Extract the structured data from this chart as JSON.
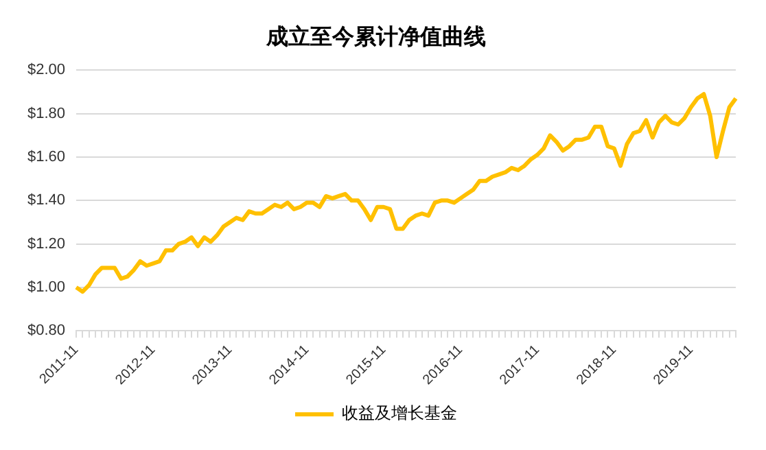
{
  "chart_data": {
    "type": "line",
    "title": "成立至今累计净值曲线",
    "categories": [
      "2011-11",
      null,
      null,
      null,
      null,
      null,
      null,
      null,
      null,
      null,
      null,
      null,
      "2012-11",
      null,
      null,
      null,
      null,
      null,
      null,
      null,
      null,
      null,
      null,
      null,
      "2013-11",
      null,
      null,
      null,
      null,
      null,
      null,
      null,
      null,
      null,
      null,
      null,
      "2014-11",
      null,
      null,
      null,
      null,
      null,
      null,
      null,
      null,
      null,
      null,
      null,
      "2015-11",
      null,
      null,
      null,
      null,
      null,
      null,
      null,
      null,
      null,
      null,
      null,
      "2016-11",
      null,
      null,
      null,
      null,
      null,
      null,
      null,
      null,
      null,
      null,
      null,
      "2017-11",
      null,
      null,
      null,
      null,
      null,
      null,
      null,
      null,
      null,
      null,
      null,
      "2018-11",
      null,
      null,
      null,
      null,
      null,
      null,
      null,
      null,
      null,
      null,
      null,
      "2019-11",
      null,
      null,
      null,
      null,
      null,
      null,
      null
    ],
    "series": [
      {
        "name": "收益及增长基金",
        "color": "#ffc000",
        "values": [
          1.0,
          0.98,
          1.01,
          1.06,
          1.09,
          1.09,
          1.09,
          1.04,
          1.05,
          1.08,
          1.12,
          1.1,
          1.11,
          1.12,
          1.17,
          1.17,
          1.2,
          1.21,
          1.23,
          1.19,
          1.23,
          1.21,
          1.24,
          1.28,
          1.3,
          1.32,
          1.31,
          1.35,
          1.34,
          1.34,
          1.36,
          1.38,
          1.37,
          1.39,
          1.36,
          1.37,
          1.39,
          1.39,
          1.37,
          1.42,
          1.41,
          1.42,
          1.43,
          1.4,
          1.4,
          1.36,
          1.31,
          1.37,
          1.37,
          1.36,
          1.27,
          1.27,
          1.31,
          1.33,
          1.34,
          1.33,
          1.39,
          1.4,
          1.4,
          1.39,
          1.41,
          1.43,
          1.45,
          1.49,
          1.49,
          1.51,
          1.52,
          1.53,
          1.55,
          1.54,
          1.56,
          1.59,
          1.61,
          1.64,
          1.7,
          1.67,
          1.63,
          1.65,
          1.68,
          1.68,
          1.69,
          1.74,
          1.74,
          1.65,
          1.64,
          1.56,
          1.66,
          1.71,
          1.72,
          1.77,
          1.69,
          1.76,
          1.79,
          1.76,
          1.75,
          1.78,
          1.83,
          1.87,
          1.89,
          1.79,
          1.6,
          1.72,
          1.83,
          1.87
        ]
      }
    ],
    "ylim": [
      0.8,
      2.0
    ],
    "yticks": [
      {
        "value": 0.8,
        "label": "$0.80"
      },
      {
        "value": 1.0,
        "label": "$1.00"
      },
      {
        "value": 1.2,
        "label": "$1.20"
      },
      {
        "value": 1.4,
        "label": "$1.40"
      },
      {
        "value": 1.6,
        "label": "$1.60"
      },
      {
        "value": 1.8,
        "label": "$1.80"
      },
      {
        "value": 2.0,
        "label": "$2.00"
      }
    ],
    "grid": "y",
    "legend": "bottom",
    "marker": "none",
    "line_style": "solid"
  }
}
